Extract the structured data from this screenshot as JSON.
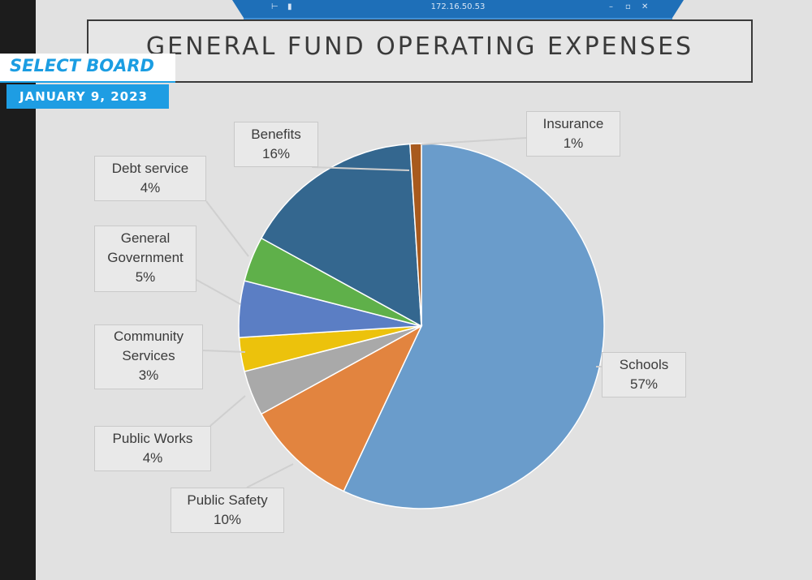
{
  "window": {
    "address": "172.16.50.53",
    "pin_icon": "pin-icon",
    "signal_icon": "signal-icon",
    "minimize_icon": "minimize-icon",
    "restore_icon": "restore-icon",
    "close_icon": "close-icon"
  },
  "overlay": {
    "show_title": "SELECT BOARD",
    "date": "JANUARY 9, 2023",
    "accent_color": "#1e9de3"
  },
  "slide": {
    "title": "GENERAL FUND OPERATING EXPENSES"
  },
  "chart_data": {
    "type": "pie",
    "title": "GENERAL FUND OPERATING EXPENSES",
    "slices": [
      {
        "name": "Schools",
        "label": "57%",
        "value": 57,
        "color": "#6a9ccb"
      },
      {
        "name": "Public Safety",
        "label": "10%",
        "value": 10,
        "color": "#e2843f"
      },
      {
        "name": "Public Works",
        "label": "4%",
        "value": 4,
        "color": "#a9a9a9"
      },
      {
        "name": "Community Services",
        "label": "3%",
        "value": 3,
        "color": "#ecc20c"
      },
      {
        "name": "General Government",
        "label": "5%",
        "value": 5,
        "color": "#5b7ec4"
      },
      {
        "name": "Debt service",
        "label": "4%",
        "value": 4,
        "color": "#5fb04a"
      },
      {
        "name": "Benefits",
        "label": "16%",
        "value": 16,
        "color": "#34678f"
      },
      {
        "name": "Insurance",
        "label": "1%",
        "value": 1,
        "color": "#a85a1e"
      }
    ],
    "labels": [
      {
        "line1": "Schools",
        "line2": "",
        "pct": "57%"
      },
      {
        "line1": "Public Safety",
        "line2": "",
        "pct": "10%"
      },
      {
        "line1": "Public Works",
        "line2": "",
        "pct": "4%"
      },
      {
        "line1": "Community",
        "line2": "Services",
        "pct": "3%"
      },
      {
        "line1": "General",
        "line2": "Government",
        "pct": "5%"
      },
      {
        "line1": "Debt service",
        "line2": "",
        "pct": "4%"
      },
      {
        "line1": "Benefits",
        "line2": "",
        "pct": "16%"
      },
      {
        "line1": "Insurance",
        "line2": "",
        "pct": "1%"
      }
    ],
    "legend": "none",
    "data_labels": "outside with leader lines"
  }
}
